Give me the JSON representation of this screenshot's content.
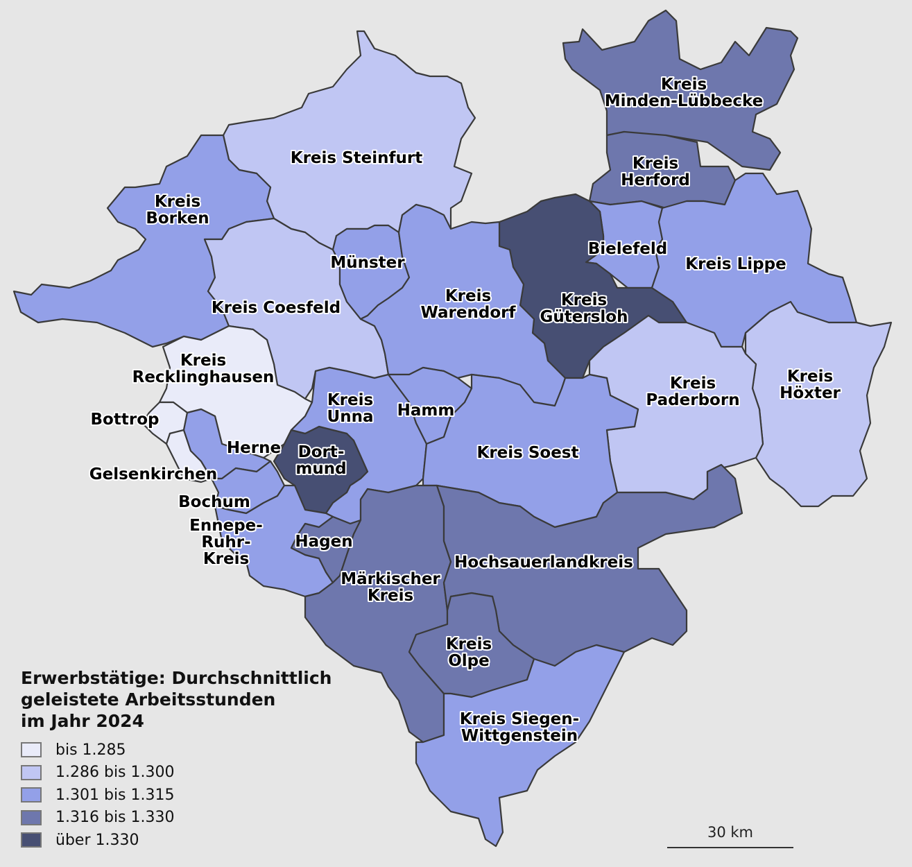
{
  "legend": {
    "title": "Erwerbstätige: Durchschnittlich\ngeleistete Arbeitsstunden\nim Jahr 2024",
    "classes": [
      {
        "label": "bis 1.285",
        "color": "#e9ebf9"
      },
      {
        "label": "1.286 bis 1.300",
        "color": "#c0c6f3"
      },
      {
        "label": "1.301 bis 1.315",
        "color": "#93a0e8"
      },
      {
        "label": "1.316 bis 1.330",
        "color": "#6e77ad"
      },
      {
        "label": "über 1.330",
        "color": "#474f73"
      }
    ]
  },
  "scale_bar": {
    "label": "30 km"
  },
  "regions": [
    {
      "id": "minden-luebbecke",
      "label": [
        "Kreis",
        "Minden-Lübbecke"
      ],
      "class": 3
    },
    {
      "id": "herford",
      "label": [
        "Kreis",
        "Herford"
      ],
      "class": 3
    },
    {
      "id": "bielefeld",
      "label": [
        "Bielefeld"
      ],
      "class": 2
    },
    {
      "id": "guetersloh",
      "label": [
        "Kreis",
        "Gütersloh"
      ],
      "class": 4
    },
    {
      "id": "lippe",
      "label": [
        "Kreis Lippe"
      ],
      "class": 2
    },
    {
      "id": "hoexter",
      "label": [
        "Kreis",
        "Höxter"
      ],
      "class": 1
    },
    {
      "id": "paderborn",
      "label": [
        "Kreis",
        "Paderborn"
      ],
      "class": 1
    },
    {
      "id": "steinfurt",
      "label": [
        "Kreis Steinfurt"
      ],
      "class": 1
    },
    {
      "id": "borken",
      "label": [
        "Kreis",
        "Borken"
      ],
      "class": 2
    },
    {
      "id": "coesfeld",
      "label": [
        "Kreis Coesfeld"
      ],
      "class": 1
    },
    {
      "id": "muenster",
      "label": [
        "Münster"
      ],
      "class": 2
    },
    {
      "id": "warendorf",
      "label": [
        "Kreis",
        "Warendorf"
      ],
      "class": 2
    },
    {
      "id": "recklinghausen",
      "label": [
        "Kreis",
        "Recklinghausen"
      ],
      "class": 0
    },
    {
      "id": "bottrop",
      "label": [
        "Bottrop"
      ],
      "class": 0
    },
    {
      "id": "gelsenkirchen",
      "label": [
        "Gelsenkirchen"
      ],
      "class": 0
    },
    {
      "id": "herne",
      "label": [
        "Herne"
      ],
      "class": 2
    },
    {
      "id": "bochum",
      "label": [
        "Bochum"
      ],
      "class": 2
    },
    {
      "id": "dortmund",
      "label": [
        "Dort-",
        "mund"
      ],
      "class": 4
    },
    {
      "id": "unna",
      "label": [
        "Kreis",
        "Unna"
      ],
      "class": 2
    },
    {
      "id": "hamm",
      "label": [
        "Hamm"
      ],
      "class": 2
    },
    {
      "id": "soest",
      "label": [
        "Kreis Soest"
      ],
      "class": 2
    },
    {
      "id": "ennepe-ruhr",
      "label": [
        "Ennepe-",
        "Ruhr-",
        "Kreis"
      ],
      "class": 2
    },
    {
      "id": "hagen",
      "label": [
        "Hagen"
      ],
      "class": 3
    },
    {
      "id": "maerkischer-kreis",
      "label": [
        "Märkischer",
        "Kreis"
      ],
      "class": 3
    },
    {
      "id": "hochsauerland",
      "label": [
        "Hochsauerlandkreis"
      ],
      "class": 3
    },
    {
      "id": "olpe",
      "label": [
        "Kreis",
        "Olpe"
      ],
      "class": 3
    },
    {
      "id": "siegen-wittgenstein",
      "label": [
        "Kreis Siegen-",
        "Wittgenstein"
      ],
      "class": 2
    }
  ]
}
